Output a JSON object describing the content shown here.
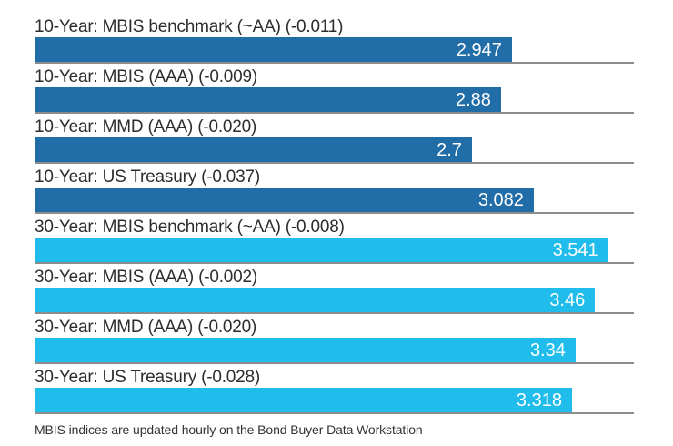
{
  "chart_data": {
    "type": "bar",
    "orientation": "horizontal",
    "xlim": [
      0,
      3.7
    ],
    "grid": "row-baselines",
    "legend": "none",
    "colors": {
      "ten_year_bar": "#216da8",
      "thirty_year_bar": "#20bceb",
      "baseline": "#8c8c8c",
      "value_text": "#ffffff",
      "label_text": "#2d2d2d"
    },
    "rows": [
      {
        "label": "10-Year: MBIS benchmark (~AA) (-0.011)",
        "value": 2.947,
        "value_label": "2.947",
        "change": -0.011,
        "group": "10-year"
      },
      {
        "label": "10-Year: MBIS (AAA) (-0.009)",
        "value": 2.88,
        "value_label": "2.88",
        "change": -0.009,
        "group": "10-year"
      },
      {
        "label": "10-Year: MMD (AAA) (-0.020)",
        "value": 2.7,
        "value_label": "2.7",
        "change": -0.02,
        "group": "10-year"
      },
      {
        "label": "10-Year: US Treasury (-0.037)",
        "value": 3.082,
        "value_label": "3.082",
        "change": -0.037,
        "group": "10-year"
      },
      {
        "label": "30-Year: MBIS benchmark (~AA) (-0.008)",
        "value": 3.541,
        "value_label": "3.541",
        "change": -0.008,
        "group": "30-year"
      },
      {
        "label": "30-Year: MBIS (AAA) (-0.002)",
        "value": 3.46,
        "value_label": "3.46",
        "change": -0.002,
        "group": "30-year"
      },
      {
        "label": "30-Year: MMD (AAA) (-0.020)",
        "value": 3.34,
        "value_label": "3.34",
        "change": -0.02,
        "group": "30-year"
      },
      {
        "label": "30-Year: US Treasury (-0.028)",
        "value": 3.318,
        "value_label": "3.318",
        "change": -0.028,
        "group": "30-year"
      }
    ]
  },
  "footer": {
    "note": "MBIS indices are updated hourly on the Bond Buyer Data Workstation"
  }
}
